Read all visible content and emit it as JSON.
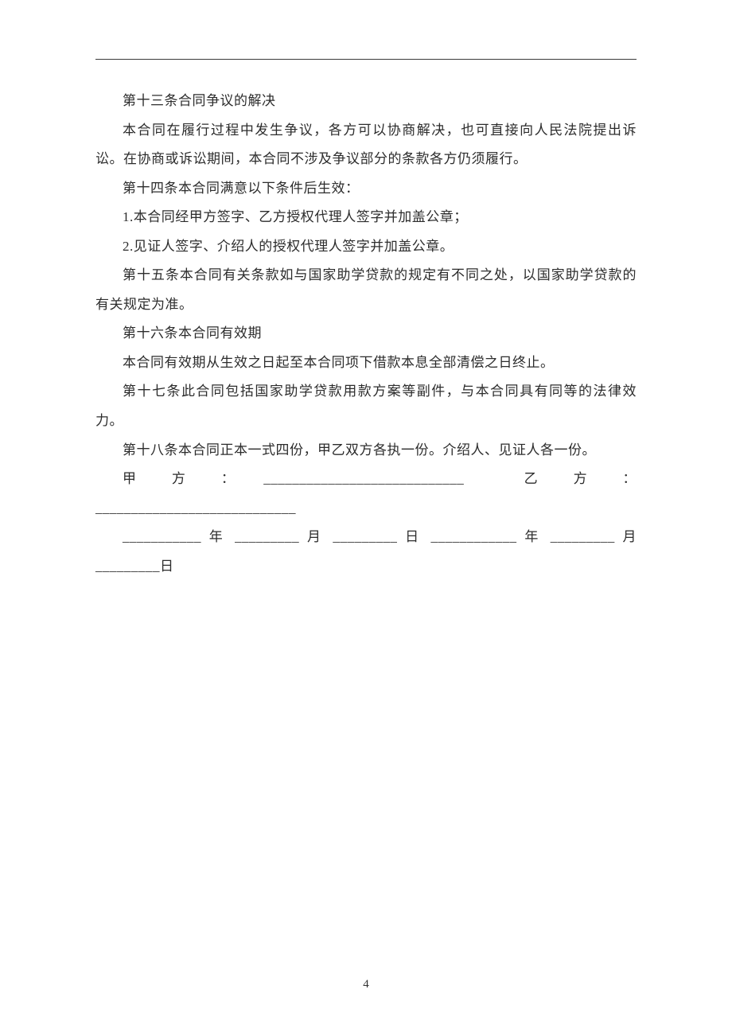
{
  "doc": {
    "font_family": "SimSun",
    "text_color": "#2c2c2c",
    "background": "#ffffff",
    "page_number": "4",
    "paragraphs": {
      "p1": "第十三条合同争议的解决",
      "p2": "本合同在履行过程中发生争议，各方可以协商解决，也可直接向人民法院提出诉讼。在协商或诉讼期间，本合同不涉及争议部分的条款各方仍须履行。",
      "p3": "第十四条本合同满意以下条件后生效：",
      "p4": "1.本合同经甲方签字、乙方授权代理人签字并加盖公章；",
      "p5": "2.见证人签字、介绍人的授权代理人签字并加盖公章。",
      "p6": "第十五条本合同有关条款如与国家助学贷款的规定有不同之处，以国家助学贷款的有关规定为准。",
      "p7": "第十六条本合同有效期",
      "p8": "本合同有效期从生效之日起至本合同项下借款本息全部清偿之日终止。",
      "p9": "第十七条此合同包括国家助学贷款用款方案等副件，与本合同具有同等的法律效力。",
      "p10": "第十八条本合同正本一式四份，甲乙双方各执一份。介绍人、见证人各一份。",
      "sig1": "甲　方　：　____________________________　　乙　方　：____________________________",
      "sig2": "___________ 年 _________ 月 _________ 日 ____________ 年 _________ 月_________日"
    }
  }
}
